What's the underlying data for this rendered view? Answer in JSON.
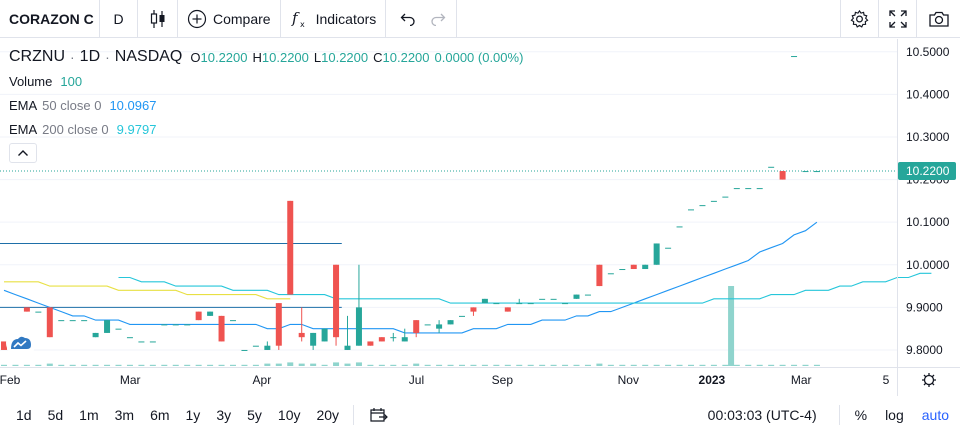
{
  "toolbar": {
    "symbol": "CORAZON C",
    "interval": "D",
    "compare_label": "Compare",
    "indicators_label": "Indicators"
  },
  "legend": {
    "symbol": "CRZNU",
    "interval": "1D",
    "exchange": "NASDAQ",
    "ohlc": [
      {
        "key": "O",
        "value": "10.2200"
      },
      {
        "key": "H",
        "value": "10.2200"
      },
      {
        "key": "L",
        "value": "10.2200"
      },
      {
        "key": "C",
        "value": "10.2200"
      }
    ],
    "change": "0.0000 (0.00%)",
    "volume": {
      "name": "Volume",
      "value": "100"
    },
    "ema50": {
      "name": "EMA",
      "params": "50 close 0",
      "value": "10.0967",
      "color": "#2196f3"
    },
    "ema200": {
      "name": "EMA",
      "params": "200 close 0",
      "value": "9.9797",
      "color": "#26c6da"
    }
  },
  "colors": {
    "up": "#26a69a",
    "down": "#ef5350",
    "ema50": "#2196f3",
    "ema200": "#26c6da",
    "yellow": "#e8e043",
    "hline": "#1e6fa8",
    "volume": "#8fd4cd",
    "accent": "#2962ff"
  },
  "chart_data": {
    "type": "candlestick",
    "y_axis": {
      "ticks": [
        "10.5000",
        "10.4000",
        "10.3000",
        "10.2000",
        "10.1000",
        "10.0000",
        "9.9000",
        "9.8000"
      ],
      "min": 9.76,
      "max": 10.53
    },
    "x_axis": {
      "ticks": [
        "Feb",
        "Mar",
        "Apr",
        "Jul",
        "Sep",
        "Nov",
        "2023",
        "Mar",
        "5"
      ]
    },
    "last_price_label": "10.2200",
    "last_price": 10.22,
    "horizontal_levels": [
      10.05,
      9.9
    ],
    "candles": [
      [
        9.82,
        9.82,
        9.8,
        9.8
      ],
      [
        9.82,
        9.83,
        9.82,
        9.83
      ],
      [
        9.9,
        9.9,
        9.89,
        9.89
      ],
      [
        9.89,
        9.89,
        9.89,
        9.89
      ],
      [
        9.9,
        9.9,
        9.83,
        9.83
      ],
      [
        9.87,
        9.87,
        9.87,
        9.87
      ],
      [
        9.87,
        9.87,
        9.87,
        9.87
      ],
      [
        9.87,
        9.87,
        9.87,
        9.87
      ],
      [
        9.83,
        9.84,
        9.83,
        9.84
      ],
      [
        9.84,
        9.87,
        9.84,
        9.87
      ],
      [
        9.85,
        9.85,
        9.85,
        9.85
      ],
      [
        9.83,
        9.83,
        9.83,
        9.83
      ],
      [
        9.82,
        9.82,
        9.82,
        9.82
      ],
      [
        9.82,
        9.82,
        9.82,
        9.82
      ],
      [
        9.86,
        9.86,
        9.86,
        9.86
      ],
      [
        9.86,
        9.86,
        9.86,
        9.86
      ],
      [
        9.86,
        9.86,
        9.86,
        9.86
      ],
      [
        9.89,
        9.89,
        9.87,
        9.87
      ],
      [
        9.88,
        9.89,
        9.88,
        9.89
      ],
      [
        9.88,
        9.88,
        9.82,
        9.82
      ],
      [
        9.87,
        9.87,
        9.87,
        9.87
      ],
      [
        9.8,
        9.8,
        9.8,
        9.8
      ],
      [
        9.81,
        9.81,
        9.81,
        9.81
      ],
      [
        9.8,
        9.82,
        9.8,
        9.81
      ],
      [
        9.91,
        9.91,
        9.8,
        9.81
      ],
      [
        10.15,
        10.15,
        9.93,
        9.93
      ],
      [
        9.84,
        9.9,
        9.82,
        9.83
      ],
      [
        9.81,
        9.84,
        9.8,
        9.84
      ],
      [
        9.82,
        9.85,
        9.82,
        9.85
      ],
      [
        10.0,
        10.0,
        9.81,
        9.83
      ],
      [
        9.8,
        9.88,
        9.8,
        9.81
      ],
      [
        9.81,
        10.0,
        9.81,
        9.9
      ],
      [
        9.82,
        9.82,
        9.81,
        9.81
      ],
      [
        9.83,
        9.83,
        9.82,
        9.82
      ],
      [
        9.83,
        9.84,
        9.82,
        9.83
      ],
      [
        9.82,
        9.85,
        9.82,
        9.83
      ],
      [
        9.87,
        9.87,
        9.83,
        9.84
      ],
      [
        9.86,
        9.86,
        9.86,
        9.86
      ],
      [
        9.85,
        9.87,
        9.84,
        9.86
      ],
      [
        9.86,
        9.87,
        9.86,
        9.87
      ],
      [
        9.88,
        9.88,
        9.88,
        9.88
      ],
      [
        9.9,
        9.9,
        9.88,
        9.89
      ],
      [
        9.91,
        9.92,
        9.91,
        9.92
      ],
      [
        9.91,
        9.91,
        9.91,
        9.91
      ],
      [
        9.9,
        9.9,
        9.89,
        9.89
      ],
      [
        9.91,
        9.92,
        9.91,
        9.91
      ],
      [
        9.91,
        9.91,
        9.91,
        9.91
      ],
      [
        9.92,
        9.92,
        9.92,
        9.92
      ],
      [
        9.92,
        9.92,
        9.92,
        9.92
      ],
      [
        9.91,
        9.91,
        9.91,
        9.91
      ],
      [
        9.92,
        9.93,
        9.92,
        9.93
      ],
      [
        9.93,
        9.93,
        9.93,
        9.93
      ],
      [
        10.0,
        10.0,
        9.95,
        9.95
      ],
      [
        9.98,
        9.98,
        9.98,
        9.98
      ],
      [
        9.99,
        9.99,
        9.99,
        9.99
      ],
      [
        10.0,
        10.0,
        9.99,
        9.99
      ],
      [
        9.99,
        10.0,
        9.99,
        10.0
      ],
      [
        10.0,
        10.05,
        10.0,
        10.05
      ],
      [
        10.04,
        10.04,
        10.04,
        10.04
      ],
      [
        10.09,
        10.09,
        10.09,
        10.09
      ],
      [
        10.13,
        10.13,
        10.13,
        10.13
      ],
      [
        10.14,
        10.14,
        10.14,
        10.14
      ],
      [
        10.15,
        10.15,
        10.15,
        10.15
      ],
      [
        10.16,
        10.16,
        10.16,
        10.16
      ],
      [
        10.18,
        10.18,
        10.18,
        10.18
      ],
      [
        10.18,
        10.18,
        10.18,
        10.18
      ],
      [
        10.18,
        10.18,
        10.18,
        10.18
      ],
      [
        10.23,
        10.23,
        10.23,
        10.23
      ],
      [
        10.22,
        10.22,
        10.2,
        10.2
      ],
      [
        10.49,
        10.49,
        10.49,
        10.49
      ],
      [
        10.22,
        10.22,
        10.22,
        10.22
      ],
      [
        10.22,
        10.22,
        10.22,
        10.22
      ]
    ],
    "volumes": [
      1,
      1,
      1,
      1,
      2,
      1,
      1,
      1,
      1,
      1,
      1,
      1,
      1,
      1,
      1,
      1,
      1,
      1,
      1,
      1,
      1,
      1,
      1,
      2,
      2,
      3,
      2,
      2,
      1,
      3,
      2,
      3,
      1,
      1,
      1,
      1,
      2,
      1,
      1,
      1,
      1,
      1,
      1,
      1,
      1,
      1,
      1,
      1,
      1,
      1,
      1,
      1,
      2,
      1,
      1,
      1,
      1,
      1,
      1,
      1,
      1,
      1,
      1,
      1,
      1,
      1,
      1,
      1,
      1,
      1,
      1,
      1
    ],
    "volume_spike": 80,
    "ema50": [
      9.94,
      9.93,
      9.92,
      9.91,
      9.9,
      9.89,
      9.88,
      9.88,
      9.87,
      9.87,
      9.87,
      9.86,
      9.86,
      9.86,
      9.86,
      9.86,
      9.86,
      9.86,
      9.86,
      9.86,
      9.86,
      9.86,
      9.86,
      9.85,
      9.85,
      9.86,
      9.86,
      9.85,
      9.85,
      9.85,
      9.85,
      9.85,
      9.85,
      9.85,
      9.85,
      9.84,
      9.84,
      9.84,
      9.84,
      9.84,
      9.84,
      9.85,
      9.85,
      9.85,
      9.86,
      9.86,
      9.86,
      9.87,
      9.87,
      9.87,
      9.88,
      9.88,
      9.89,
      9.89,
      9.9,
      9.91,
      9.92,
      9.93,
      9.94,
      9.95,
      9.96,
      9.97,
      9.98,
      9.99,
      10.0,
      10.01,
      10.03,
      10.04,
      10.05,
      10.07,
      10.08,
      10.1
    ],
    "ema200": [
      9.97,
      9.97,
      9.96,
      9.96,
      9.96,
      9.95,
      9.95,
      9.95,
      9.95,
      9.95,
      9.94,
      9.94,
      9.94,
      9.94,
      9.93,
      9.93,
      9.93,
      9.93,
      9.93,
      9.92,
      9.92,
      9.92,
      9.92,
      9.92,
      9.92,
      9.92,
      9.92,
      9.92,
      9.92,
      9.91,
      9.91,
      9.91,
      9.91,
      9.91,
      9.91,
      9.91,
      9.91,
      9.91,
      9.91,
      9.91,
      9.91,
      9.91,
      9.91,
      9.91,
      9.91,
      9.91,
      9.91,
      9.91,
      9.91,
      9.91,
      9.91,
      9.91,
      9.92,
      9.92,
      9.92,
      9.92,
      9.92,
      9.93,
      9.93,
      9.93,
      9.94,
      9.94,
      9.94,
      9.95,
      9.95,
      9.96,
      9.96,
      9.96,
      9.97,
      9.97,
      9.98,
      9.98
    ],
    "yellow_line": [
      9.96,
      9.96,
      9.96,
      9.96,
      9.95,
      9.95,
      9.95,
      9.95,
      9.95,
      9.95,
      9.94,
      9.94,
      9.94,
      9.94,
      9.94,
      9.94,
      9.93,
      9.93,
      9.93,
      9.93,
      9.93,
      9.93,
      9.93,
      9.92,
      9.92,
      9.92
    ]
  },
  "bottombar": {
    "ranges": [
      "1d",
      "5d",
      "1m",
      "3m",
      "6m",
      "1y",
      "3y",
      "5y",
      "10y",
      "20y"
    ],
    "time": "00:03:03 (UTC-4)",
    "percent": "%",
    "log": "log",
    "auto": "auto"
  }
}
